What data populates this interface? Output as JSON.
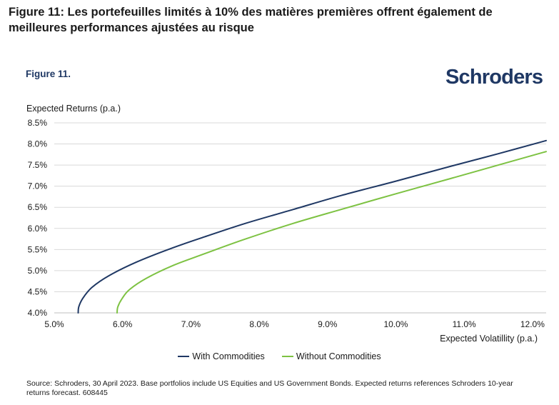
{
  "page": {
    "title": "Figure 11: Les portefeuilles limités à 10% des matières premières offrent également de meilleures performances ajustées au risque",
    "figure_label": "Figure 11.",
    "logo_text": "Schroders",
    "source": "Source: Schroders, 30 April 2023. Base portfolios include US Equities and US Government Bonds. Expected returns references Schroders 10-year returns forecast. 608445"
  },
  "colors": {
    "with": "#1f3864",
    "without": "#7dc242",
    "grid": "#d9d9d9"
  },
  "chart_data": {
    "type": "line",
    "title": "",
    "xlabel": "Expected Volatillity (p.a.)",
    "ylabel": "Expected Returns (p.a.)",
    "xlim": [
      5.0,
      12.2
    ],
    "ylim": [
      4.0,
      8.5
    ],
    "xticks": [
      5.0,
      6.0,
      7.0,
      8.0,
      9.0,
      10.0,
      11.0,
      12.0
    ],
    "yticks": [
      4.0,
      4.5,
      5.0,
      5.5,
      6.0,
      6.5,
      7.0,
      7.5,
      8.0,
      8.5
    ],
    "xtick_labels": [
      "5.0%",
      "6.0%",
      "7.0%",
      "8.0%",
      "9.0%",
      "10.0%",
      "11.0%",
      "12.0%"
    ],
    "ytick_labels": [
      "4.0%",
      "4.5%",
      "5.0%",
      "5.5%",
      "6.0%",
      "6.5%",
      "7.0%",
      "7.5%",
      "8.0%",
      "8.5%"
    ],
    "grid": "horizontal",
    "legend": "bottom-center",
    "series": [
      {
        "name": "With Commodities",
        "color": "#1f3864",
        "x": [
          5.35,
          5.36,
          5.42,
          5.55,
          5.8,
          6.2,
          6.7,
          7.2,
          7.8,
          8.5,
          9.2,
          10.0,
          10.8,
          11.5,
          12.2
        ],
        "y": [
          4.0,
          4.15,
          4.35,
          4.6,
          4.88,
          5.2,
          5.52,
          5.8,
          6.12,
          6.45,
          6.78,
          7.12,
          7.47,
          7.77,
          8.08
        ]
      },
      {
        "name": "Without Commodities",
        "color": "#7dc242",
        "x": [
          5.92,
          5.93,
          5.99,
          6.1,
          6.35,
          6.75,
          7.2,
          7.8,
          8.5,
          9.2,
          10.0,
          10.8,
          11.5,
          12.2
        ],
        "y": [
          4.0,
          4.14,
          4.33,
          4.55,
          4.82,
          5.13,
          5.4,
          5.75,
          6.12,
          6.45,
          6.82,
          7.18,
          7.5,
          7.82
        ]
      }
    ]
  }
}
